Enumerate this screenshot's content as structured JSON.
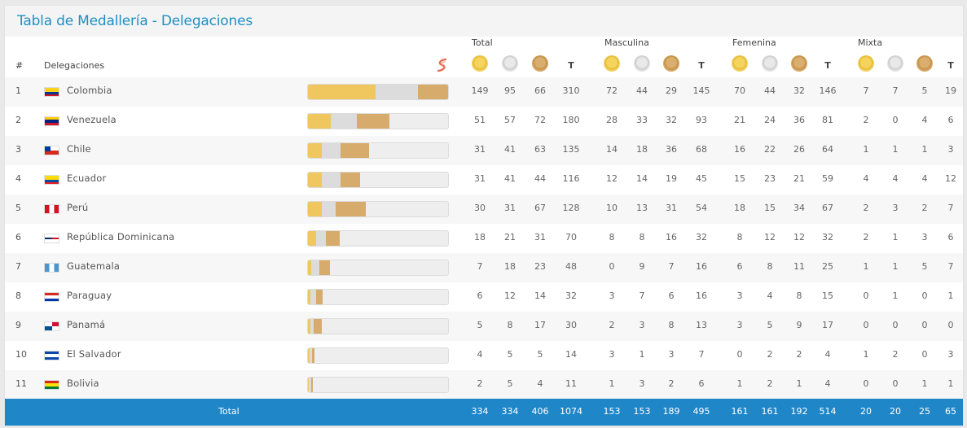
{
  "title": "Tabla de Medallería - Delegaciones",
  "groups": {
    "total": "Total",
    "masculina": "Masculina",
    "femenina": "Femenina",
    "mixta": "Mixta"
  },
  "headers": {
    "rank": "#",
    "delegations": "Delegaciones",
    "t": "T"
  },
  "colors": {
    "gold": "#f0c75e",
    "silver": "#dcdcdc",
    "bronze": "#d6ab6c",
    "accent": "#1f86c8",
    "title": "#1f8fc4"
  },
  "rows": [
    {
      "rank": "1",
      "country": "Colombia",
      "flag": "co",
      "vals": [
        "149",
        "95",
        "66",
        "310",
        "72",
        "44",
        "29",
        "145",
        "70",
        "44",
        "32",
        "146",
        "7",
        "7",
        "5",
        "19"
      ]
    },
    {
      "rank": "2",
      "country": "Venezuela",
      "flag": "ve",
      "vals": [
        "51",
        "57",
        "72",
        "180",
        "28",
        "33",
        "32",
        "93",
        "21",
        "24",
        "36",
        "81",
        "2",
        "0",
        "4",
        "6"
      ]
    },
    {
      "rank": "3",
      "country": "Chile",
      "flag": "cl",
      "vals": [
        "31",
        "41",
        "63",
        "135",
        "14",
        "18",
        "36",
        "68",
        "16",
        "22",
        "26",
        "64",
        "1",
        "1",
        "1",
        "3"
      ]
    },
    {
      "rank": "4",
      "country": "Ecuador",
      "flag": "ec",
      "vals": [
        "31",
        "41",
        "44",
        "116",
        "12",
        "14",
        "19",
        "45",
        "15",
        "23",
        "21",
        "59",
        "4",
        "4",
        "4",
        "12"
      ]
    },
    {
      "rank": "5",
      "country": "Perú",
      "flag": "pe",
      "vals": [
        "30",
        "31",
        "67",
        "128",
        "10",
        "13",
        "31",
        "54",
        "18",
        "15",
        "34",
        "67",
        "2",
        "3",
        "2",
        "7"
      ]
    },
    {
      "rank": "6",
      "country": "República Dominicana",
      "flag": "do",
      "vals": [
        "18",
        "21",
        "31",
        "70",
        "8",
        "8",
        "16",
        "32",
        "8",
        "12",
        "12",
        "32",
        "2",
        "1",
        "3",
        "6"
      ]
    },
    {
      "rank": "7",
      "country": "Guatemala",
      "flag": "gt",
      "vals": [
        "7",
        "18",
        "23",
        "48",
        "0",
        "9",
        "7",
        "16",
        "6",
        "8",
        "11",
        "25",
        "1",
        "1",
        "5",
        "7"
      ]
    },
    {
      "rank": "8",
      "country": "Paraguay",
      "flag": "py",
      "vals": [
        "6",
        "12",
        "14",
        "32",
        "3",
        "7",
        "6",
        "16",
        "3",
        "4",
        "8",
        "15",
        "0",
        "1",
        "0",
        "1"
      ]
    },
    {
      "rank": "9",
      "country": "Panamá",
      "flag": "pa",
      "vals": [
        "5",
        "8",
        "17",
        "30",
        "2",
        "3",
        "8",
        "13",
        "3",
        "5",
        "9",
        "17",
        "0",
        "0",
        "0",
        "0"
      ]
    },
    {
      "rank": "10",
      "country": "El Salvador",
      "flag": "sv",
      "vals": [
        "4",
        "5",
        "5",
        "14",
        "3",
        "1",
        "3",
        "7",
        "0",
        "2",
        "2",
        "4",
        "1",
        "2",
        "0",
        "3"
      ]
    },
    {
      "rank": "11",
      "country": "Bolivia",
      "flag": "bo",
      "vals": [
        "2",
        "5",
        "4",
        "11",
        "1",
        "3",
        "2",
        "6",
        "1",
        "2",
        "1",
        "4",
        "0",
        "0",
        "1",
        "1"
      ]
    }
  ],
  "total": {
    "label": "Total",
    "vals": [
      "334",
      "334",
      "406",
      "1074",
      "153",
      "153",
      "189",
      "495",
      "161",
      "161",
      "192",
      "514",
      "20",
      "20",
      "25",
      "65"
    ]
  }
}
